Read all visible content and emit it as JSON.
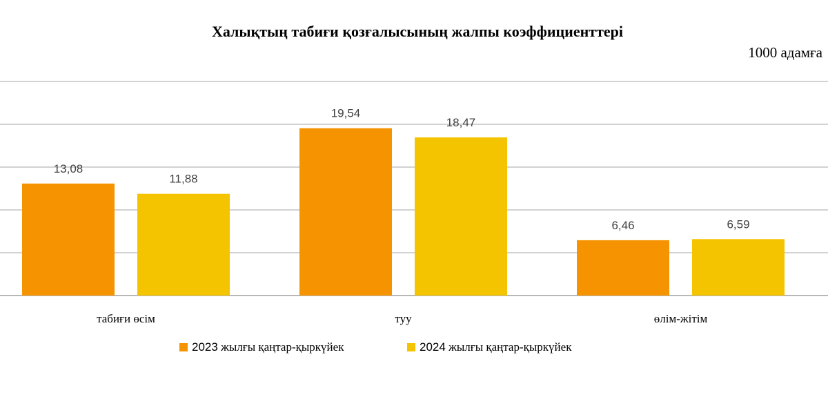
{
  "chart_data": {
    "type": "bar",
    "title": "Халықтың табиғи қозғалысының жалпы коэффициенттері",
    "unit_label": "1000 адамға",
    "categories": [
      "табиғи өсім",
      "туу",
      "өлім-жітім"
    ],
    "series": [
      {
        "name_year": "2023",
        "name_rest": "жылғы қаңтар-қыркүйек",
        "color": "#F59300",
        "values": [
          13.08,
          19.54,
          6.46
        ]
      },
      {
        "name_year": "2024",
        "name_rest": "жылғы қаңтар-қыркүйек",
        "color": "#F5C400",
        "values": [
          11.88,
          18.47,
          6.59
        ]
      }
    ],
    "value_labels": [
      [
        "13,08",
        "19,54",
        "6,46"
      ],
      [
        "11,88",
        "18,47",
        "6,59"
      ]
    ],
    "ylim": [
      0,
      25
    ],
    "gridlines": [
      0,
      5,
      10,
      15,
      20,
      25
    ],
    "grid": true,
    "legend": "bottom"
  }
}
